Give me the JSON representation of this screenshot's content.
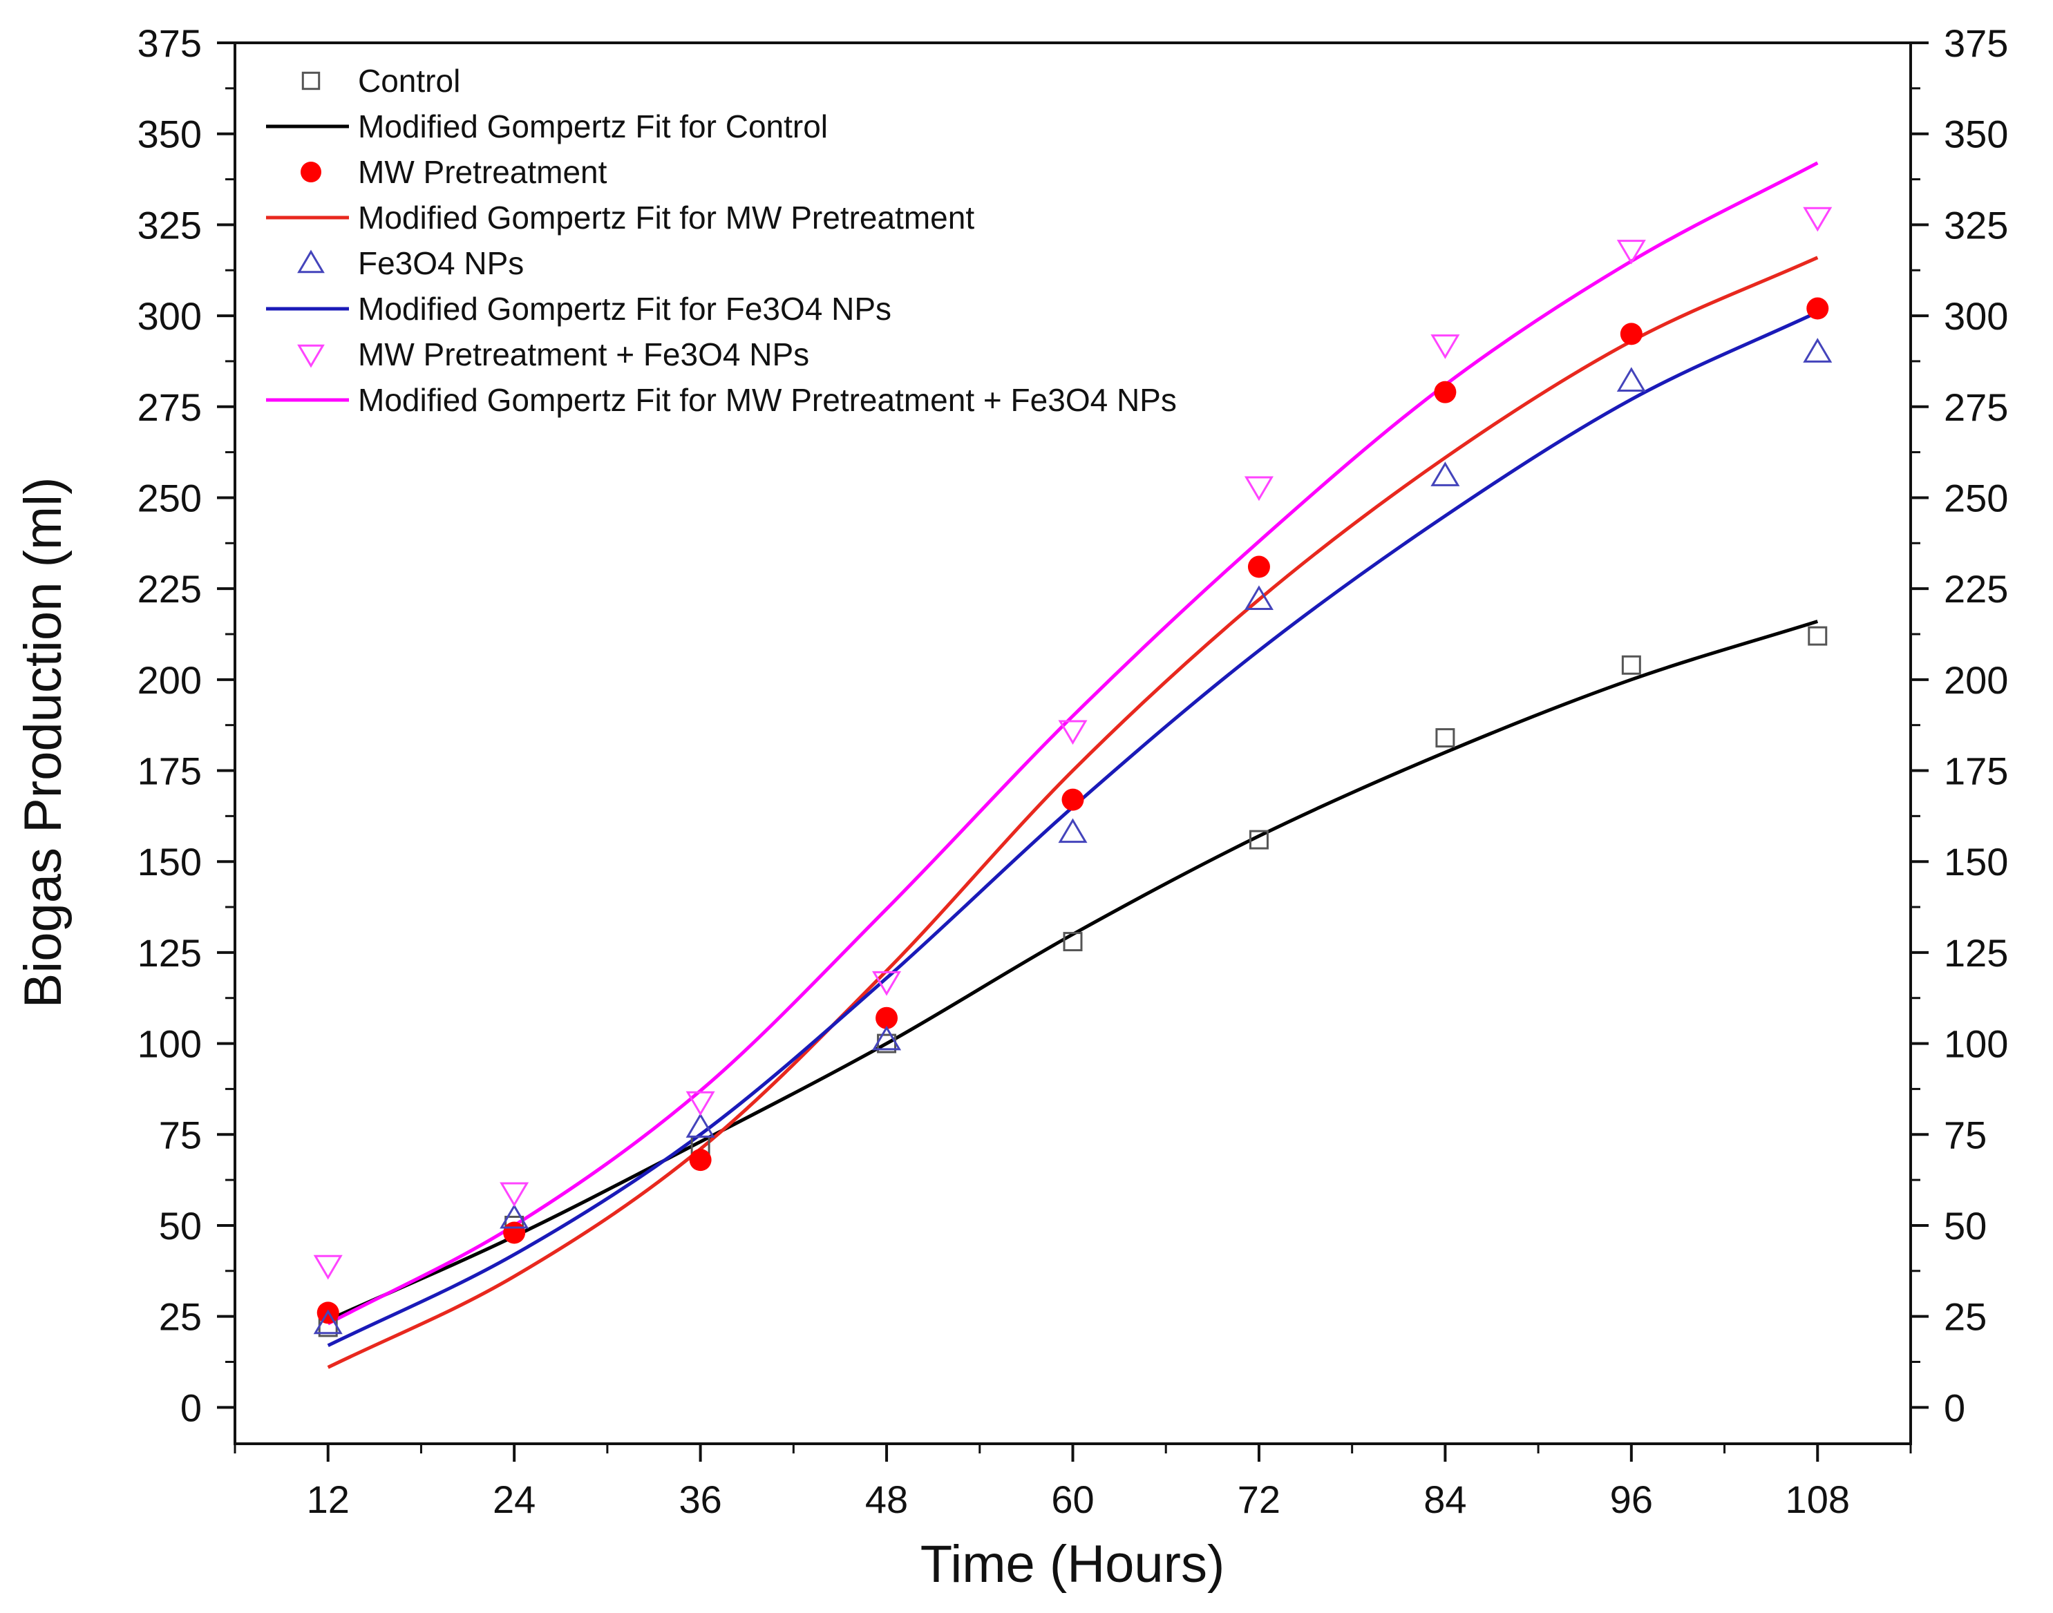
{
  "chart_data": {
    "type": "scatter",
    "xlabel": "Time (Hours)",
    "ylabel": "Biogas Production (ml)",
    "xlim": [
      6,
      114
    ],
    "ylim": [
      -10,
      375
    ],
    "x_ticks": [
      12,
      24,
      36,
      48,
      60,
      72,
      84,
      96,
      108
    ],
    "x_tick_labels": [
      "12",
      "24",
      "36",
      "48",
      "60",
      "72",
      "84",
      "96",
      "108"
    ],
    "y_ticks": [
      0,
      25,
      50,
      75,
      100,
      125,
      150,
      175,
      200,
      225,
      250,
      275,
      300,
      325,
      350,
      375
    ],
    "y_tick_labels": [
      "0",
      "25",
      "50",
      "75",
      "100",
      "125",
      "150",
      "175",
      "200",
      "225",
      "250",
      "275",
      "300",
      "325",
      "350",
      "375"
    ],
    "legend_position": "top-left",
    "x": [
      12,
      24,
      36,
      48,
      60,
      72,
      84,
      96,
      108
    ],
    "series": [
      {
        "name": "Control",
        "kind": "markers",
        "marker": "square-open",
        "color": "#555555",
        "values": [
          22,
          50,
          72,
          100,
          128,
          156,
          184,
          204,
          212
        ]
      },
      {
        "name": "Modified Gompertz Fit for Control",
        "kind": "line",
        "color": "#000000",
        "values": [
          24,
          47,
          73,
          100,
          130,
          157,
          180,
          200,
          216
        ]
      },
      {
        "name": "MW Pretreatment",
        "kind": "markers",
        "marker": "circle-filled",
        "color": "#ff0000",
        "values": [
          26,
          48,
          68,
          107,
          167,
          231,
          279,
          295,
          302
        ]
      },
      {
        "name": "Modified Gompertz Fit for MW Pretreatment",
        "kind": "line",
        "color": "#e8281e",
        "values": [
          11,
          36,
          71,
          120,
          175,
          222,
          261,
          293,
          316
        ]
      },
      {
        "name": "Fe3O4 NPs",
        "kind": "markers",
        "marker": "triangle-up-open",
        "color": "#4444bb",
        "values": [
          23,
          52,
          77,
          101,
          158,
          222,
          256,
          282,
          290
        ]
      },
      {
        "name": "Modified Gompertz Fit for Fe3O4 NPs",
        "kind": "line",
        "color": "#1a1ab8",
        "values": [
          17,
          42,
          75,
          118,
          165,
          208,
          245,
          277,
          301
        ]
      },
      {
        "name": "MW Pretreatment + Fe3O4 NPs",
        "kind": "markers",
        "marker": "triangle-down-open",
        "color": "#ff44ff",
        "values": [
          39,
          59,
          84,
          117,
          186,
          253,
          292,
          318,
          327
        ]
      },
      {
        "name": "Modified Gompertz Fit for MW Pretreatment + Fe3O4 NPs",
        "kind": "line",
        "color": "#ff00ff",
        "values": [
          23,
          50,
          87,
          137,
          190,
          238,
          281,
          315,
          342
        ]
      }
    ]
  }
}
